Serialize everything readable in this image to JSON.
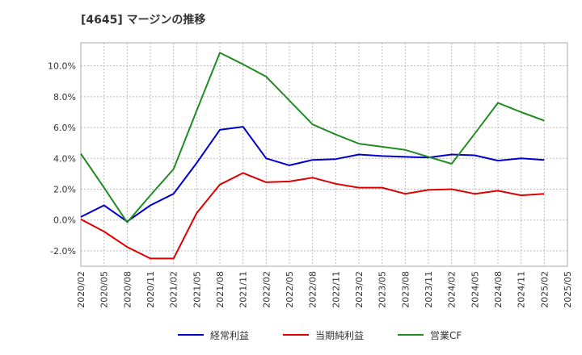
{
  "chart_data": {
    "type": "line",
    "title": "[4645]  マージンの推移",
    "xlabel": "",
    "ylabel": "",
    "categories": [
      "2020/02",
      "2020/05",
      "2020/08",
      "2020/11",
      "2021/02",
      "2021/05",
      "2021/08",
      "2021/11",
      "2022/02",
      "2022/05",
      "2022/08",
      "2022/11",
      "2023/02",
      "2023/05",
      "2023/08",
      "2023/11",
      "2024/02",
      "2024/05",
      "2024/08",
      "2024/11",
      "2025/02",
      "2025/05"
    ],
    "ylim": [
      -3.0,
      11.5
    ],
    "yticks": [
      -2.0,
      0.0,
      2.0,
      4.0,
      6.0,
      8.0,
      10.0
    ],
    "ytick_labels": [
      "-2.0%",
      "0.0%",
      "2.0%",
      "4.0%",
      "6.0%",
      "8.0%",
      "10.0%"
    ],
    "grid": true,
    "legend_position": "bottom",
    "series": [
      {
        "name": "経常利益",
        "color": "#0000cc",
        "values": [
          0.2,
          0.95,
          -0.1,
          0.95,
          1.7,
          3.7,
          5.85,
          6.05,
          4.0,
          3.55,
          3.9,
          3.95,
          4.25,
          4.15,
          4.1,
          4.05,
          4.25,
          4.2,
          3.85,
          4.0,
          3.9,
          null
        ]
      },
      {
        "name": "当期純利益",
        "color": "#dd0000",
        "values": [
          0.05,
          -0.75,
          -1.75,
          -2.5,
          -2.5,
          0.45,
          2.3,
          3.05,
          2.45,
          2.5,
          2.75,
          2.35,
          2.1,
          2.1,
          1.7,
          1.95,
          2.0,
          1.7,
          1.9,
          1.6,
          1.7,
          null
        ]
      },
      {
        "name": "営業CF",
        "color": "#228b22",
        "values": [
          4.3,
          2.1,
          -0.15,
          1.6,
          3.3,
          7.1,
          10.85,
          10.1,
          9.3,
          7.75,
          6.2,
          5.55,
          4.95,
          4.75,
          4.55,
          4.1,
          3.65,
          5.6,
          7.6,
          7.0,
          6.45,
          null
        ]
      }
    ]
  }
}
